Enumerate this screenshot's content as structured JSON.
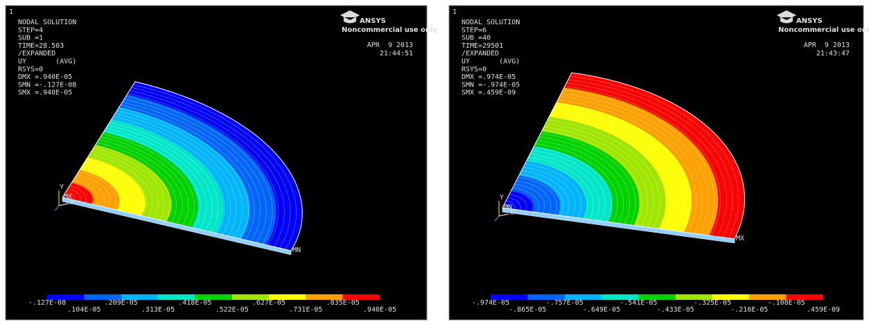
{
  "panels": [
    {
      "window_number": "1",
      "header_lines": [
        "NODAL SOLUTION",
        "STEP=4",
        "SUB =1",
        "TIME=28.503",
        "/EXPANDED",
        "UY       (AVG)",
        "RSYS=0",
        "DMX =.940E-05",
        "SMN =-.127E-08",
        "SMX =.940E-05"
      ],
      "date": "APR  9 2013",
      "time": "21:44:51",
      "logo": {
        "name": "ANSYS",
        "note": "Noncommercial use only"
      },
      "axis_labels": [
        "Y",
        "X"
      ],
      "origin_label": "MX",
      "far_label": "MN",
      "legend_labels": [
        "-.127E-08",
        ".104E-05",
        ".209E-05",
        ".313E-05",
        ".418E-05",
        ".522E-05",
        ".627E-05",
        ".731E-05",
        ".835E-05",
        ".940E-05"
      ]
    },
    {
      "window_number": "1",
      "header_lines": [
        "NODAL SOLUTION",
        "STEP=6",
        "SUB =40",
        "TIME=29501",
        "/EXPANDED",
        "UY       (AVG)",
        "RSYS=0",
        "DMX =.974E-05",
        "SMN =-.974E-05",
        "SMX =.459E-09"
      ],
      "date": "APR  9 2013",
      "time": "21:43:47",
      "logo": {
        "name": "ANSYS",
        "note": "Noncommercial use only"
      },
      "axis_labels": [
        "Y",
        "X"
      ],
      "origin_label": "MN",
      "far_label": "MX",
      "legend_labels": [
        "-.974E-05",
        "-.865E-05",
        "-.757E-05",
        "-.649E-05",
        "-.541E-05",
        "-.433E-05",
        "-.325E-05",
        "-.216E-05",
        "-.108E-05",
        ".459E-09"
      ]
    }
  ]
}
